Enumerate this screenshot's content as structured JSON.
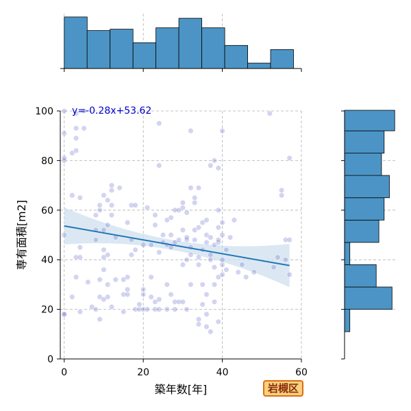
{
  "chart_data": {
    "type": "scatter",
    "xlabel": "築年数[年]",
    "ylabel": "専有面積[m2]",
    "xlim": [
      -1,
      60
    ],
    "ylim": [
      0,
      100
    ],
    "xticks": [
      "0",
      "20",
      "40",
      "60"
    ],
    "yticks": [
      "0",
      "20",
      "40",
      "60",
      "80",
      "100"
    ],
    "grid": true,
    "regression": {
      "equation": "y=-0.28x+53.62",
      "slope": -0.28,
      "intercept": 53.62,
      "x_range": [
        0,
        57
      ],
      "line_color": "#1f77b4",
      "band_color": "#cfe0ef"
    },
    "point_color": "#5c64c8",
    "bar_color": "#4c94c5",
    "points": [
      [
        0,
        18
      ],
      [
        0,
        18
      ],
      [
        0,
        50
      ],
      [
        0,
        80
      ],
      [
        0,
        81
      ],
      [
        0,
        91
      ],
      [
        0,
        100
      ],
      [
        2,
        25
      ],
      [
        2,
        66
      ],
      [
        2,
        83
      ],
      [
        3,
        33
      ],
      [
        3,
        41
      ],
      [
        3,
        89
      ],
      [
        3,
        93
      ],
      [
        3,
        99
      ],
      [
        3,
        84
      ],
      [
        4,
        19
      ],
      [
        4,
        41
      ],
      [
        4,
        45
      ],
      [
        4,
        65
      ],
      [
        5,
        93
      ],
      [
        5,
        100
      ],
      [
        6,
        31
      ],
      [
        7,
        21
      ],
      [
        8,
        20
      ],
      [
        8,
        48
      ],
      [
        8,
        52
      ],
      [
        8,
        58
      ],
      [
        9,
        16
      ],
      [
        9,
        25
      ],
      [
        9,
        32
      ],
      [
        9,
        60
      ],
      [
        9,
        62
      ],
      [
        10,
        24
      ],
      [
        10,
        36
      ],
      [
        10,
        41
      ],
      [
        10,
        44
      ],
      [
        10,
        52
      ],
      [
        10,
        66
      ],
      [
        11,
        25
      ],
      [
        11,
        30
      ],
      [
        11,
        42
      ],
      [
        11,
        54
      ],
      [
        11,
        64
      ],
      [
        12,
        21
      ],
      [
        12,
        58
      ],
      [
        12,
        62
      ],
      [
        12,
        68
      ],
      [
        12,
        70
      ],
      [
        13,
        32
      ],
      [
        13,
        49
      ],
      [
        14,
        69
      ],
      [
        15,
        19
      ],
      [
        15,
        26
      ],
      [
        15,
        32
      ],
      [
        16,
        26
      ],
      [
        16,
        28
      ],
      [
        16,
        33
      ],
      [
        16,
        55
      ],
      [
        17,
        42
      ],
      [
        17,
        48
      ],
      [
        17,
        62
      ],
      [
        18,
        20
      ],
      [
        18,
        44
      ],
      [
        18,
        62
      ],
      [
        19,
        20
      ],
      [
        19,
        22
      ],
      [
        20,
        20
      ],
      [
        20,
        26
      ],
      [
        20,
        28
      ],
      [
        20,
        46
      ],
      [
        21,
        20
      ],
      [
        21,
        61
      ],
      [
        22,
        25
      ],
      [
        22,
        33
      ],
      [
        22,
        46
      ],
      [
        23,
        20
      ],
      [
        23,
        23
      ],
      [
        23,
        54
      ],
      [
        23,
        58
      ],
      [
        24,
        20
      ],
      [
        24,
        24
      ],
      [
        24,
        43
      ],
      [
        24,
        78
      ],
      [
        24,
        95
      ],
      [
        25,
        47
      ],
      [
        25,
        50
      ],
      [
        26,
        20
      ],
      [
        26,
        30
      ],
      [
        26,
        46
      ],
      [
        26,
        56
      ],
      [
        27,
        26
      ],
      [
        27,
        45
      ],
      [
        27,
        50
      ],
      [
        27,
        57
      ],
      [
        28,
        20
      ],
      [
        28,
        23
      ],
      [
        28,
        47
      ],
      [
        28,
        60
      ],
      [
        29,
        23
      ],
      [
        29,
        48
      ],
      [
        29,
        60
      ],
      [
        30,
        23
      ],
      [
        30,
        38
      ],
      [
        30,
        52
      ],
      [
        30,
        61
      ],
      [
        30,
        63
      ],
      [
        31,
        20
      ],
      [
        31,
        40
      ],
      [
        31,
        48
      ],
      [
        31,
        49
      ],
      [
        31,
        59
      ],
      [
        32,
        30
      ],
      [
        32,
        42
      ],
      [
        32,
        45
      ],
      [
        32,
        69
      ],
      [
        32,
        92
      ],
      [
        33,
        48
      ],
      [
        33,
        52
      ],
      [
        33,
        63
      ],
      [
        33,
        65
      ],
      [
        34,
        14
      ],
      [
        34,
        16
      ],
      [
        34,
        38
      ],
      [
        34,
        41
      ],
      [
        34,
        53
      ],
      [
        34,
        69
      ],
      [
        35,
        22
      ],
      [
        35,
        30
      ],
      [
        35,
        44
      ],
      [
        35,
        55
      ],
      [
        36,
        13
      ],
      [
        36,
        18
      ],
      [
        36,
        26
      ],
      [
        36,
        47
      ],
      [
        36,
        50
      ],
      [
        36,
        56
      ],
      [
        37,
        11
      ],
      [
        37,
        40
      ],
      [
        37,
        42
      ],
      [
        37,
        49
      ],
      [
        37,
        78
      ],
      [
        38,
        23
      ],
      [
        38,
        30
      ],
      [
        38,
        37
      ],
      [
        38,
        46
      ],
      [
        38,
        80
      ],
      [
        39,
        15
      ],
      [
        39,
        33
      ],
      [
        39,
        47
      ],
      [
        39,
        48
      ],
      [
        39,
        53
      ],
      [
        39,
        60
      ],
      [
        39,
        77
      ],
      [
        40,
        34
      ],
      [
        40,
        38
      ],
      [
        40,
        40
      ],
      [
        40,
        50
      ],
      [
        40,
        55
      ],
      [
        40,
        92
      ],
      [
        41,
        36
      ],
      [
        41,
        44
      ],
      [
        42,
        49
      ],
      [
        43,
        56
      ],
      [
        44,
        35
      ],
      [
        45,
        38
      ],
      [
        46,
        33
      ],
      [
        48,
        35
      ],
      [
        52,
        99
      ],
      [
        53,
        37
      ],
      [
        54,
        41
      ],
      [
        55,
        66
      ],
      [
        55,
        68
      ],
      [
        56,
        40
      ],
      [
        56,
        48
      ],
      [
        57,
        34
      ],
      [
        57,
        48
      ],
      [
        57,
        81
      ]
    ],
    "top_histogram": [
      38,
      28,
      29,
      19,
      30,
      37,
      30,
      17,
      4,
      14
    ],
    "right_histogram": [
      2,
      18,
      12,
      2,
      13,
      15,
      17,
      14,
      15,
      19
    ]
  },
  "badge": {
    "label": "岩槻区"
  }
}
